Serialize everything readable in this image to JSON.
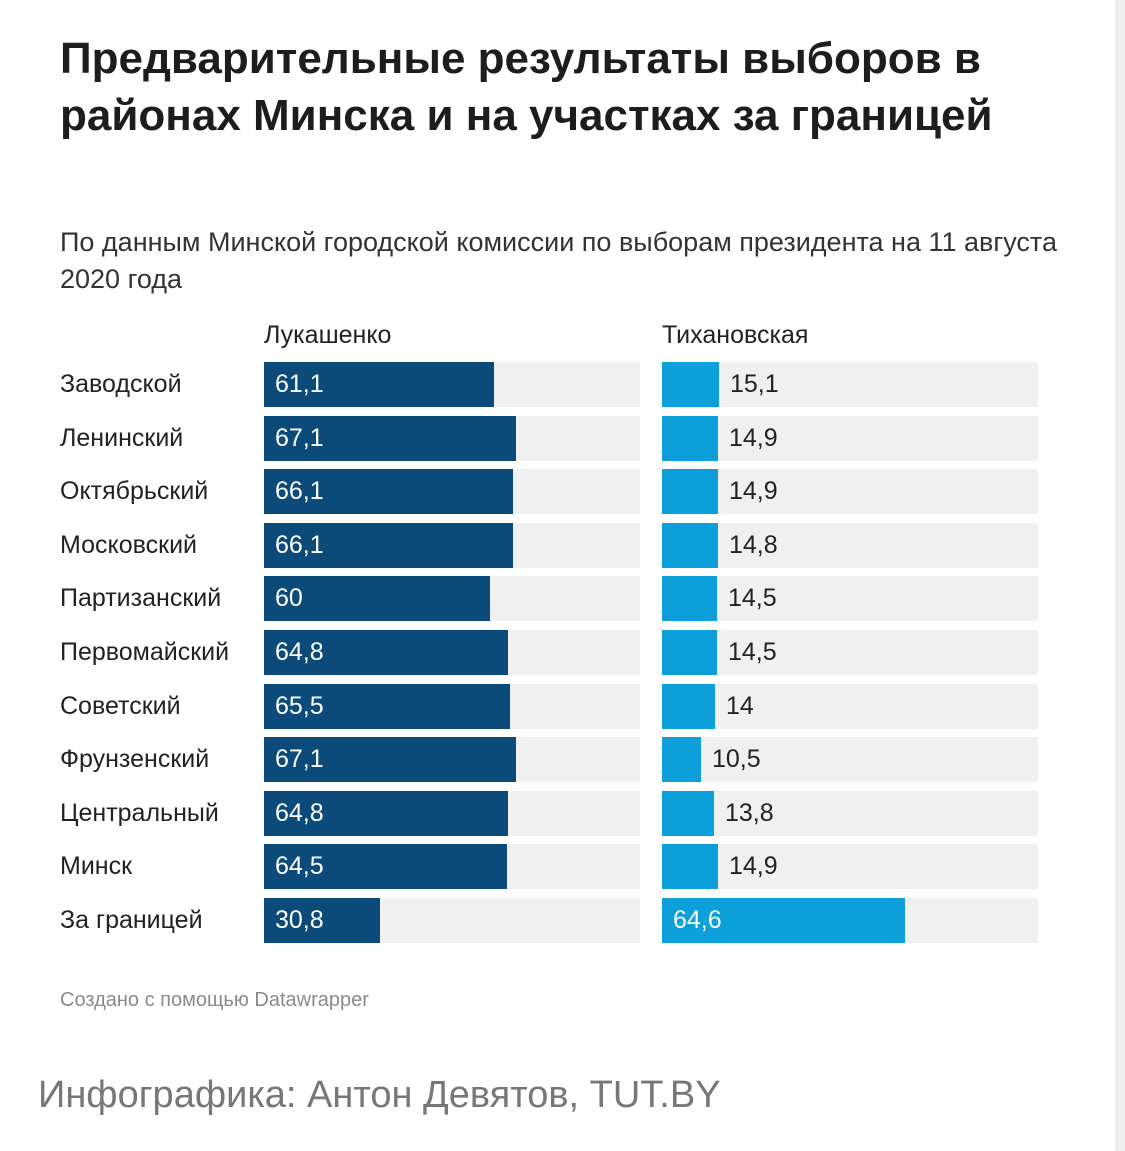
{
  "title": "Предварительные результаты выборов в районах Минска и на участках за границей",
  "subtitle": "По данным Минской городской комиссии по выборам президента на 11 августа 2020 года",
  "credit": "Создано с помощью Datawrapper",
  "source": "Инфографика: Антон Девятов, TUT.BY",
  "colors": {
    "lukashenko": "#0c4a7a",
    "tikhanovskaya": "#0c9fd9",
    "track": "#f0f0f0"
  },
  "chart_data": {
    "type": "bar",
    "orientation": "horizontal",
    "title": "Предварительные результаты выборов в районах Минска и на участках за границей",
    "subtitle": "По данным Минской городской комиссии по выборам президента на 11 августа 2020 года",
    "xlim": [
      0,
      100
    ],
    "grid": false,
    "categories": [
      "Заводской",
      "Ленинский",
      "Октябрьский",
      "Московский",
      "Партизанский",
      "Первомайский",
      "Советский",
      "Фрунзенский",
      "Центральный",
      "Минск",
      "За границей"
    ],
    "series": [
      {
        "name": "Лукашенко",
        "values": [
          61.1,
          67.1,
          66.1,
          66.1,
          60,
          64.8,
          65.5,
          67.1,
          64.8,
          64.5,
          30.8
        ],
        "labels": [
          "61,1",
          "67,1",
          "66,1",
          "66,1",
          "60",
          "64,8",
          "65,5",
          "67,1",
          "64,8",
          "64,5",
          "30,8"
        ]
      },
      {
        "name": "Тихановская",
        "values": [
          15.1,
          14.9,
          14.9,
          14.8,
          14.5,
          14.5,
          14,
          10.5,
          13.8,
          14.9,
          64.6
        ],
        "labels": [
          "15,1",
          "14,9",
          "14,9",
          "14,8",
          "14,5",
          "14,5",
          "14",
          "10,5",
          "13,8",
          "14,9",
          "64,6"
        ]
      }
    ]
  }
}
